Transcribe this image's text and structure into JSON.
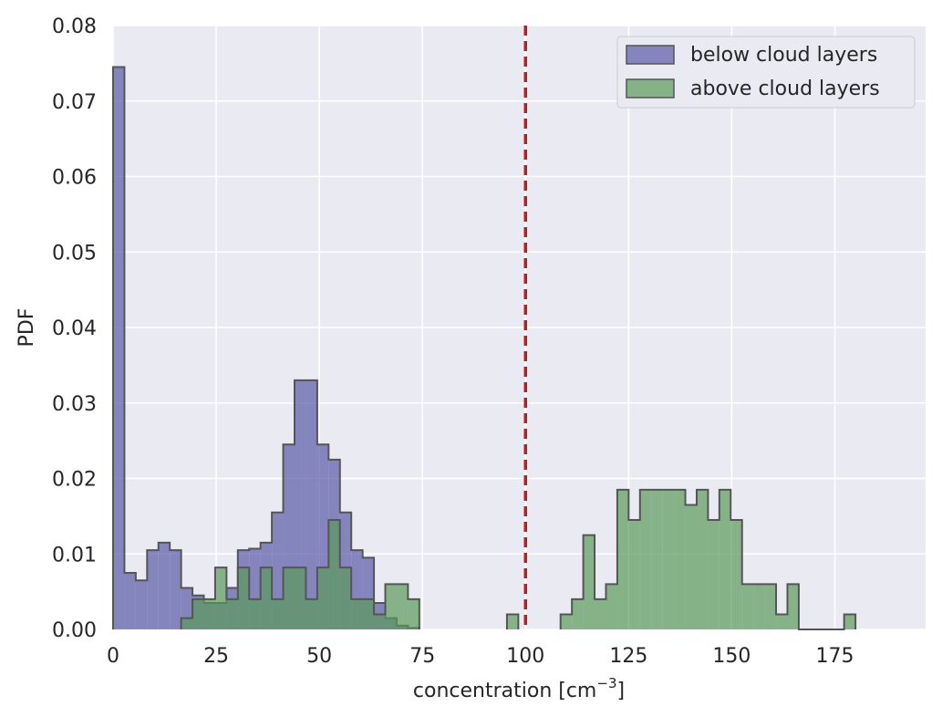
{
  "chart_data": {
    "type": "histogram",
    "xlabel": "concentration [cm",
    "xlabel_sup": "−3",
    "xlabel_end": "]",
    "ylabel": "PDF",
    "xlim": [
      0,
      197
    ],
    "ylim": [
      0,
      0.08
    ],
    "x_ticks": [
      0,
      25,
      50,
      75,
      100,
      125,
      150,
      175
    ],
    "y_ticks": [
      0.0,
      0.01,
      0.02,
      0.03,
      0.04,
      0.05,
      0.06,
      0.07,
      0.08
    ],
    "y_tick_labels": [
      "0.00",
      "0.01",
      "0.02",
      "0.03",
      "0.04",
      "0.05",
      "0.06",
      "0.07",
      "0.08"
    ],
    "grid": true,
    "legend_position": "top-right",
    "reference_line": {
      "x": 100,
      "style": "dashed",
      "color": "#b22222"
    },
    "series": [
      {
        "name": "below cloud layers",
        "color": "#5a5aa8",
        "bin_width": 2.75,
        "bins": [
          [
            0,
            0.0745
          ],
          [
            2.75,
            0.0075
          ],
          [
            5.5,
            0.0065
          ],
          [
            8.25,
            0.0105
          ],
          [
            11,
            0.0115
          ],
          [
            13.75,
            0.0105
          ],
          [
            16.5,
            0.0055
          ],
          [
            19.25,
            0.0045
          ],
          [
            22,
            0.0035
          ],
          [
            24.75,
            0.0035
          ],
          [
            27.5,
            0.0055
          ],
          [
            30.25,
            0.0105
          ],
          [
            33,
            0.0107
          ],
          [
            35.75,
            0.0115
          ],
          [
            38.5,
            0.0155
          ],
          [
            41.25,
            0.0245
          ],
          [
            44,
            0.033
          ],
          [
            46.75,
            0.033
          ],
          [
            49.5,
            0.0245
          ],
          [
            52.25,
            0.0225
          ],
          [
            55,
            0.0155
          ],
          [
            57.75,
            0.0105
          ],
          [
            60.5,
            0.0095
          ],
          [
            63.25,
            0.0035
          ],
          [
            66,
            0.0015
          ],
          [
            68.75,
            0.0005
          ],
          [
            71.5,
            0.0002
          ]
        ]
      },
      {
        "name": "above cloud layers",
        "color": "#5a9a5a",
        "bin_width": 2.75,
        "bins": [
          [
            16.5,
            0.0015
          ],
          [
            19.25,
            0.004
          ],
          [
            22,
            0.004
          ],
          [
            24.75,
            0.0082
          ],
          [
            27.5,
            0.004
          ],
          [
            30.25,
            0.0082
          ],
          [
            33,
            0.004
          ],
          [
            35.75,
            0.0082
          ],
          [
            38.5,
            0.004
          ],
          [
            41.25,
            0.0082
          ],
          [
            44,
            0.0082
          ],
          [
            46.75,
            0.004
          ],
          [
            49.5,
            0.0082
          ],
          [
            52.25,
            0.0145
          ],
          [
            55,
            0.0082
          ],
          [
            57.75,
            0.004
          ],
          [
            60.5,
            0.004
          ],
          [
            63.25,
            0.002
          ],
          [
            66,
            0.006
          ],
          [
            68.75,
            0.006
          ],
          [
            71.5,
            0.004
          ],
          [
            95.5,
            0.002
          ],
          [
            108.5,
            0.002
          ],
          [
            111.25,
            0.004
          ],
          [
            114,
            0.0125
          ],
          [
            116.75,
            0.004
          ],
          [
            119.5,
            0.006
          ],
          [
            122.25,
            0.0185
          ],
          [
            125,
            0.0145
          ],
          [
            127.75,
            0.0185
          ],
          [
            130.5,
            0.0185
          ],
          [
            133.25,
            0.0185
          ],
          [
            136,
            0.0185
          ],
          [
            138.75,
            0.0165
          ],
          [
            141.5,
            0.0185
          ],
          [
            144.25,
            0.0145
          ],
          [
            147,
            0.0185
          ],
          [
            149.75,
            0.0145
          ],
          [
            152.5,
            0.006
          ],
          [
            155.25,
            0.006
          ],
          [
            158,
            0.006
          ],
          [
            160.75,
            0.002
          ],
          [
            163.5,
            0.006
          ],
          [
            166.25,
            0.0
          ],
          [
            169,
            0.0
          ],
          [
            171.75,
            0.0
          ],
          [
            174.5,
            0.0
          ],
          [
            177.25,
            0.002
          ]
        ]
      }
    ]
  }
}
